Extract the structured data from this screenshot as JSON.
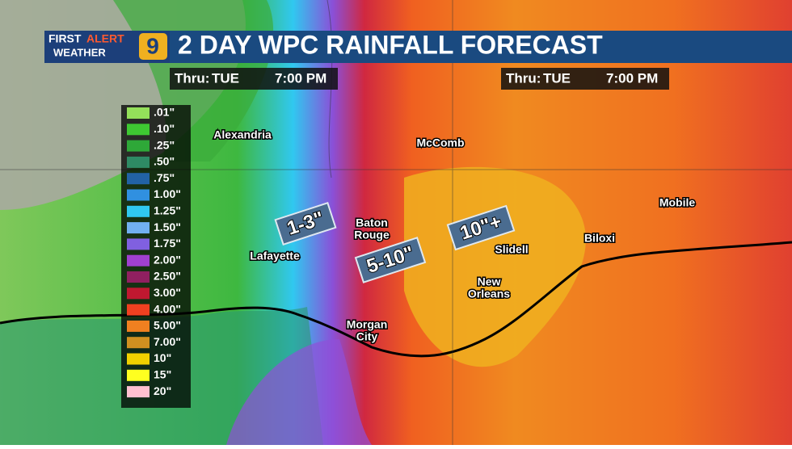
{
  "header": {
    "logo": {
      "line1_a": "FIRST",
      "line1_b": "ALERT",
      "line2": "WEATHER",
      "channel": "9"
    },
    "title": "2 DAY WPC RAINFALL FORECAST"
  },
  "valid_times": [
    {
      "label": "Thru:",
      "day": "TUE",
      "time": "7:00 PM"
    },
    {
      "label": "Thru:",
      "day": "TUE",
      "time": "7:00 PM"
    }
  ],
  "legend": {
    "items": [
      {
        "label": ".01\"",
        "color": "#94e05a"
      },
      {
        "label": ".10\"",
        "color": "#3ec832"
      },
      {
        "label": ".25\"",
        "color": "#2ea838"
      },
      {
        "label": ".50\"",
        "color": "#2e8a64"
      },
      {
        "label": ".75\"",
        "color": "#2262a4"
      },
      {
        "label": "1.00\"",
        "color": "#3090e0"
      },
      {
        "label": "1.25\"",
        "color": "#30c8f0"
      },
      {
        "label": "1.50\"",
        "color": "#72b0f0"
      },
      {
        "label": "1.75\"",
        "color": "#8060e0"
      },
      {
        "label": "2.00\"",
        "color": "#a040d0"
      },
      {
        "label": "2.50\"",
        "color": "#902060"
      },
      {
        "label": "3.00\"",
        "color": "#c01830"
      },
      {
        "label": "4.00\"",
        "color": "#f04020"
      },
      {
        "label": "5.00\"",
        "color": "#f08020"
      },
      {
        "label": "7.00\"",
        "color": "#d09020"
      },
      {
        "label": "10\"",
        "color": "#f0d000"
      },
      {
        "label": "15\"",
        "color": "#ffff20"
      },
      {
        "label": "20\"",
        "color": "#ffc0d0"
      }
    ]
  },
  "callouts": [
    {
      "label": "1-3\""
    },
    {
      "label": "5-10\""
    },
    {
      "label": "10\"+"
    }
  ],
  "cities": [
    {
      "lines": [
        "Alexandria"
      ]
    },
    {
      "lines": [
        "McComb"
      ]
    },
    {
      "lines": [
        "Baton",
        "Rouge"
      ]
    },
    {
      "lines": [
        "Lafayette"
      ]
    },
    {
      "lines": [
        "Slidell"
      ]
    },
    {
      "lines": [
        "Biloxi"
      ]
    },
    {
      "lines": [
        "Mobile"
      ]
    },
    {
      "lines": [
        "New",
        "Orleans"
      ]
    },
    {
      "lines": [
        "Morgan",
        "City"
      ]
    }
  ]
}
